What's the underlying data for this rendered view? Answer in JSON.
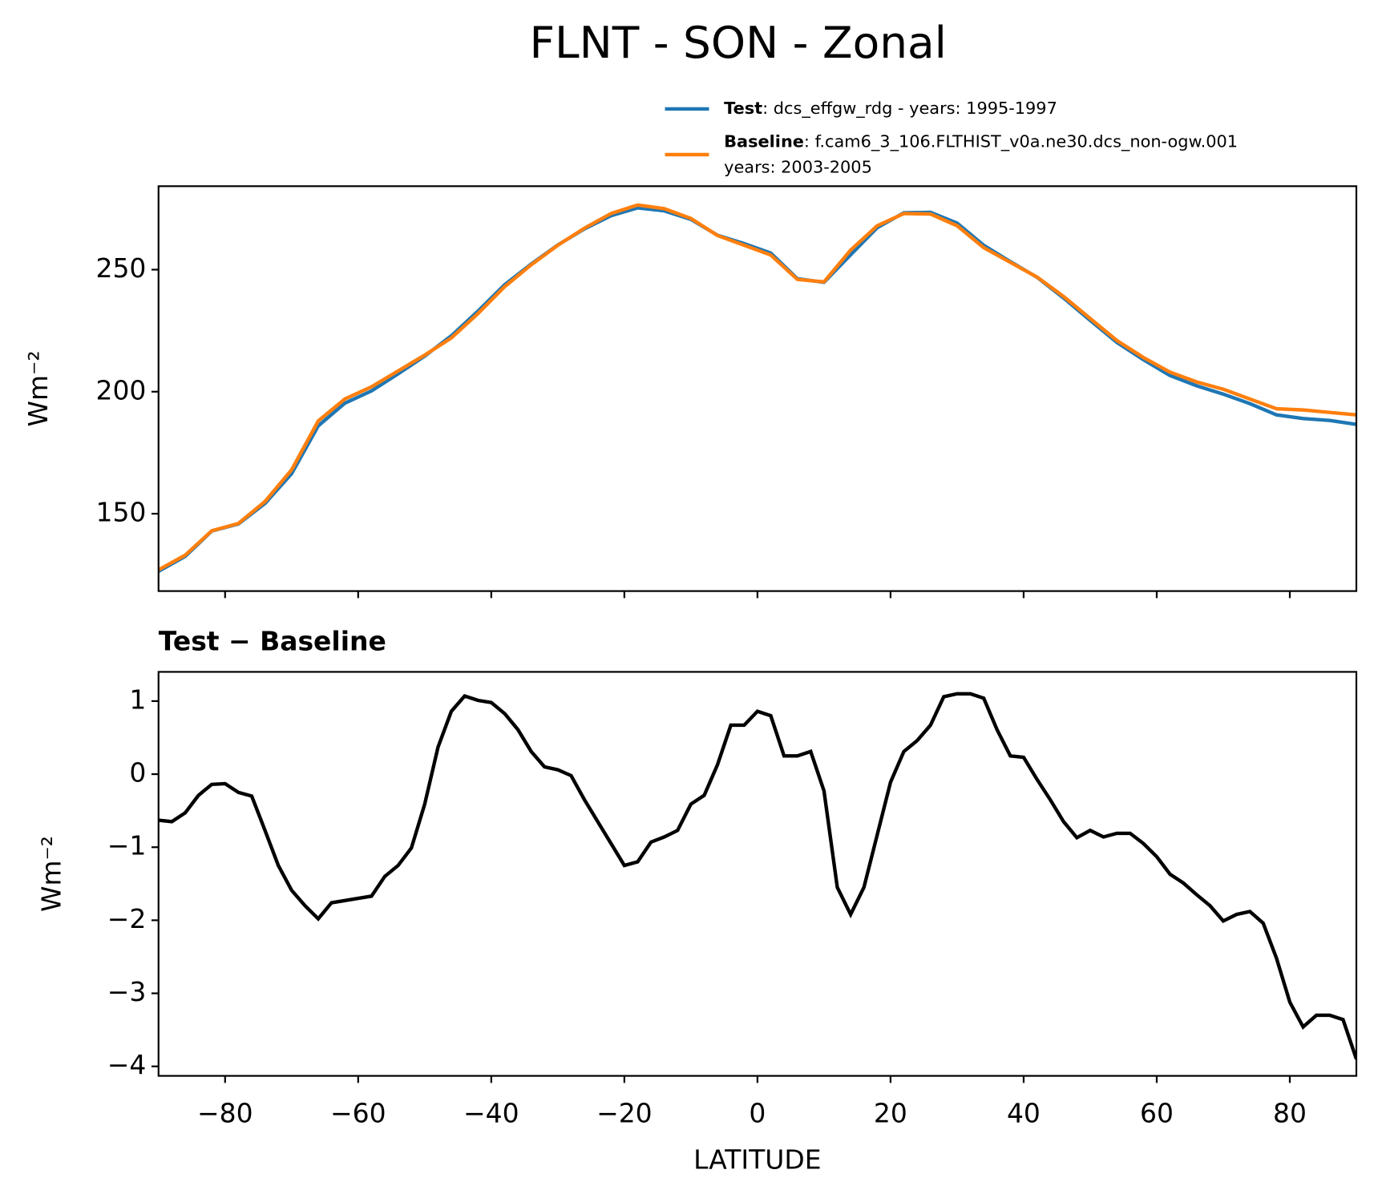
{
  "title": "FLNT - SON - Zonal",
  "chart_data": [
    {
      "type": "line",
      "ylabel": "Wm⁻²",
      "x": [
        -90,
        -86,
        -82,
        -78,
        -74,
        -70,
        -66,
        -62,
        -58,
        -54,
        -50,
        -46,
        -42,
        -38,
        -34,
        -30,
        -26,
        -22,
        -18,
        -14,
        -10,
        -6,
        -2,
        2,
        6,
        10,
        14,
        18,
        22,
        26,
        30,
        34,
        38,
        42,
        46,
        50,
        54,
        58,
        62,
        66,
        70,
        74,
        78,
        82,
        86,
        90
      ],
      "series": [
        {
          "name": "Test",
          "label": [
            ": dcs_effgw_rdg - years: 1995-1997"
          ],
          "color": "#1f77b4",
          "values": [
            126.4,
            132.5,
            142.9,
            145.8,
            154.2,
            166.4,
            186.0,
            195.3,
            200.3,
            207.3,
            214.6,
            222.9,
            233.0,
            243.8,
            252.3,
            260.1,
            266.7,
            272.1,
            275.3,
            274.1,
            270.6,
            264.1,
            260.7,
            256.8,
            246.3,
            244.8,
            256.1,
            267.2,
            273.3,
            273.5,
            269.1,
            260.0,
            253.3,
            246.9,
            238.4,
            229.2,
            220.2,
            213.1,
            206.6,
            202.4,
            199.0,
            195.1,
            190.5,
            189.0,
            188.2,
            186.6
          ]
        },
        {
          "name": "Baseline",
          "label": [
            ": f.cam6_3_106.FLTHIST_v0a.ne30.dcs_non-ogw.001",
            "years: 2003-2005"
          ],
          "color": "#ff7f0e",
          "values": [
            127,
            133,
            143,
            146,
            155,
            168,
            188,
            197,
            202,
            208.5,
            215,
            222,
            232,
            243,
            252,
            260,
            267,
            273,
            276.5,
            275,
            271,
            264,
            260,
            256,
            246,
            245,
            258,
            268,
            273,
            272.8,
            268,
            259,
            253,
            247,
            239,
            230,
            221,
            214,
            208,
            204,
            201,
            197,
            193,
            192.5,
            191.5,
            190.5
          ]
        }
      ],
      "xlim": [
        -90,
        90
      ],
      "xticks": [
        -80,
        -60,
        -40,
        -20,
        0,
        20,
        40,
        60,
        80
      ],
      "ylim": [
        118.3,
        284.2
      ],
      "yticks": [
        150,
        200,
        250
      ]
    },
    {
      "type": "line",
      "title": "Test − Baseline",
      "ylabel": "Wm⁻²",
      "xlabel": "LATITUDE",
      "x": [
        -90,
        -88,
        -86,
        -84,
        -82,
        -80,
        -78,
        -76,
        -74,
        -72,
        -70,
        -68,
        -66,
        -64,
        -62,
        -60,
        -58,
        -56,
        -54,
        -52,
        -50,
        -48,
        -46,
        -44,
        -42,
        -40,
        -38,
        -36,
        -34,
        -32,
        -30,
        -28,
        -26,
        -24,
        -22,
        -20,
        -18,
        -16,
        -14,
        -12,
        -10,
        -8,
        -6,
        -4,
        -2,
        0,
        2,
        4,
        6,
        8,
        10,
        12,
        14,
        16,
        18,
        20,
        22,
        24,
        26,
        28,
        30,
        32,
        34,
        36,
        38,
        40,
        42,
        44,
        46,
        48,
        50,
        52,
        54,
        56,
        58,
        60,
        62,
        64,
        66,
        68,
        70,
        72,
        74,
        76,
        78,
        80,
        82,
        84,
        86,
        88,
        90
      ],
      "series": [
        {
          "color": "#000000",
          "values": [
            -0.63,
            -0.65,
            -0.53,
            -0.29,
            -0.14,
            -0.13,
            -0.25,
            -0.3,
            -0.77,
            -1.25,
            -1.59,
            -1.8,
            -1.98,
            -1.76,
            -1.73,
            -1.7,
            -1.67,
            -1.4,
            -1.25,
            -1.01,
            -0.41,
            0.37,
            0.86,
            1.07,
            1.01,
            0.98,
            0.83,
            0.61,
            0.31,
            0.1,
            0.06,
            -0.02,
            -0.35,
            -0.65,
            -0.95,
            -1.25,
            -1.2,
            -0.93,
            -0.86,
            -0.77,
            -0.41,
            -0.29,
            0.13,
            0.67,
            0.67,
            0.86,
            0.8,
            0.25,
            0.25,
            0.31,
            -0.23,
            -1.55,
            -1.92,
            -1.55,
            -0.83,
            -0.11,
            0.31,
            0.46,
            0.67,
            1.06,
            1.1,
            1.1,
            1.04,
            0.61,
            0.25,
            0.23,
            -0.07,
            -0.35,
            -0.65,
            -0.87,
            -0.77,
            -0.86,
            -0.81,
            -0.81,
            -0.95,
            -1.13,
            -1.37,
            -1.49,
            -1.65,
            -1.8,
            -2.01,
            -1.92,
            -1.88,
            -2.04,
            -2.52,
            -3.12,
            -3.46,
            -3.3,
            -3.3,
            -3.36,
            -3.9
          ]
        }
      ],
      "xlim": [
        -90,
        90
      ],
      "xticks": [
        {
          "value": -80,
          "label": "−80"
        },
        {
          "value": -60,
          "label": "−60"
        },
        {
          "value": -40,
          "label": "−40"
        },
        {
          "value": -20,
          "label": "−20"
        },
        0,
        20,
        40,
        60,
        80
      ],
      "ylim": [
        -4.13,
        1.4
      ],
      "yticks": [
        1,
        0,
        {
          "value": -1,
          "label": "−1"
        },
        {
          "value": -2,
          "label": "−2"
        },
        {
          "value": -3,
          "label": "−3"
        },
        {
          "value": -4,
          "label": "−4"
        }
      ]
    }
  ]
}
